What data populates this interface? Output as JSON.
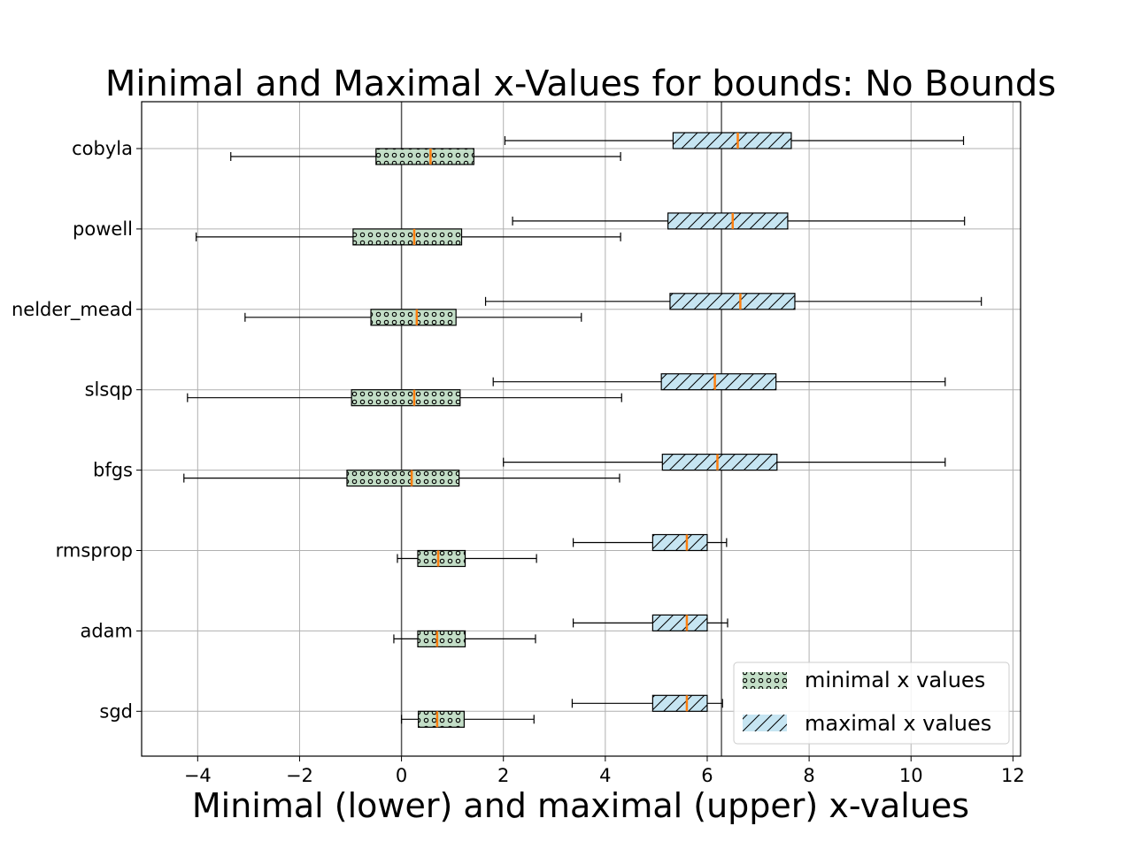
{
  "chart_data": {
    "type": "boxplot",
    "orientation": "horizontal",
    "title": "Minimal and Maximal x-Values for bounds: No Bounds",
    "xlabel": "Minimal (lower) and maximal (upper) x-values",
    "ylabel": "",
    "xlim": [
      -5.1,
      12.15
    ],
    "xticks": [
      -4,
      -2,
      0,
      2,
      4,
      6,
      8,
      10,
      12
    ],
    "xtick_labels": [
      "−4",
      "−2",
      "0",
      "2",
      "4",
      "6",
      "8",
      "10",
      "12"
    ],
    "grid": true,
    "reference_lines_x": [
      0,
      6.28
    ],
    "categories": [
      "cobyla",
      "powell",
      "nelder_mead",
      "slsqp",
      "bfgs",
      "rmsprop",
      "adam",
      "sgd"
    ],
    "series": [
      {
        "name": "minimal x values",
        "color": "#c3dec7",
        "pattern": "dots",
        "boxes": [
          {
            "whislo": -3.35,
            "q1": -0.5,
            "med": 0.57,
            "q3": 1.42,
            "whishi": 4.3
          },
          {
            "whislo": -4.03,
            "q1": -0.95,
            "med": 0.25,
            "q3": 1.18,
            "whishi": 4.3
          },
          {
            "whislo": -3.07,
            "q1": -0.6,
            "med": 0.3,
            "q3": 1.07,
            "whishi": 3.53
          },
          {
            "whislo": -4.2,
            "q1": -0.98,
            "med": 0.25,
            "q3": 1.15,
            "whishi": 4.32
          },
          {
            "whislo": -4.27,
            "q1": -1.07,
            "med": 0.2,
            "q3": 1.13,
            "whishi": 4.28
          },
          {
            "whislo": -0.08,
            "q1": 0.32,
            "med": 0.72,
            "q3": 1.25,
            "whishi": 2.65
          },
          {
            "whislo": -0.15,
            "q1": 0.32,
            "med": 0.7,
            "q3": 1.25,
            "whishi": 2.63
          },
          {
            "whislo": 0.0,
            "q1": 0.33,
            "med": 0.7,
            "q3": 1.23,
            "whishi": 2.6
          }
        ]
      },
      {
        "name": "maximal x values",
        "color": "#c6e5f2",
        "pattern": "hatch",
        "boxes": [
          {
            "whislo": 2.03,
            "q1": 5.33,
            "med": 6.6,
            "q3": 7.65,
            "whishi": 11.03
          },
          {
            "whislo": 2.18,
            "q1": 5.23,
            "med": 6.5,
            "q3": 7.58,
            "whishi": 11.05
          },
          {
            "whislo": 1.65,
            "q1": 5.27,
            "med": 6.65,
            "q3": 7.72,
            "whishi": 11.38
          },
          {
            "whislo": 1.8,
            "q1": 5.1,
            "med": 6.15,
            "q3": 7.35,
            "whishi": 10.67
          },
          {
            "whislo": 2.0,
            "q1": 5.12,
            "med": 6.2,
            "q3": 7.37,
            "whishi": 10.67
          },
          {
            "whislo": 3.37,
            "q1": 4.93,
            "med": 5.6,
            "q3": 6.0,
            "whishi": 6.38
          },
          {
            "whislo": 3.37,
            "q1": 4.93,
            "med": 5.6,
            "q3": 6.0,
            "whishi": 6.4
          },
          {
            "whislo": 3.35,
            "q1": 4.93,
            "med": 5.6,
            "q3": 6.0,
            "whishi": 6.3
          }
        ]
      }
    ],
    "median_color": "#ff7f0e",
    "legend_position": "lower right"
  }
}
